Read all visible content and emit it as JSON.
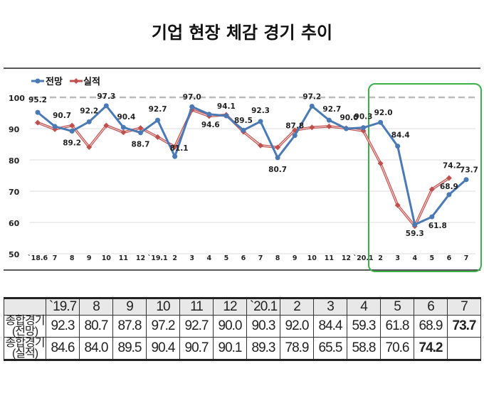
{
  "title": "기업 현장 체감 경기 추이",
  "chart_data": {
    "type": "line",
    "title": "기업 현장 체감 경기 추이",
    "categories": [
      "`18.6",
      "7",
      "8",
      "9",
      "10",
      "11",
      "12",
      "`19.1",
      "2",
      "3",
      "4",
      "5",
      "6",
      "7",
      "8",
      "9",
      "10",
      "11",
      "12",
      "`20.1",
      "2",
      "3",
      "4",
      "5",
      "6",
      "7"
    ],
    "ylim": [
      50,
      100
    ],
    "yticks": [
      50,
      60,
      70,
      80,
      90,
      100
    ],
    "grid": true,
    "reference_line": 100,
    "legend": "top-left",
    "series": [
      {
        "name": "전망",
        "color": "#4a7ab5",
        "values": [
          95.2,
          90.7,
          89.2,
          92.2,
          97.3,
          90.4,
          88.7,
          92.7,
          81.1,
          97.0,
          94.6,
          94.1,
          89.5,
          92.3,
          80.7,
          87.8,
          97.2,
          92.7,
          90.0,
          90.3,
          92.0,
          84.4,
          59.3,
          61.8,
          68.9,
          73.7
        ],
        "labeled": true
      },
      {
        "name": "실적",
        "color": "#c0504d",
        "values": [
          91.9,
          89.8,
          91.0,
          84.1,
          91.0,
          88.8,
          90.2,
          87.3,
          84.2,
          96.0,
          94.0,
          94.4,
          89.0,
          84.6,
          84.0,
          89.5,
          90.4,
          90.7,
          90.1,
          89.3,
          78.9,
          65.5,
          58.8,
          70.6,
          74.2,
          null
        ],
        "labeled_last": "74.2"
      }
    ],
    "highlight_box_color": "#3cb04a"
  },
  "table": {
    "header": [
      "`19.7",
      "8",
      "9",
      "10",
      "11",
      "12",
      "`20.1",
      "2",
      "3",
      "4",
      "5",
      "6",
      "7"
    ],
    "rows": [
      {
        "label1": "종합경기",
        "label2": "(전망)",
        "values": [
          "92.3",
          "80.7",
          "87.8",
          "97.2",
          "92.7",
          "90.0",
          "90.3",
          "92.0",
          "84.4",
          "59.3",
          "61.8",
          "68.9",
          "73.7"
        ]
      },
      {
        "label1": "종합경기",
        "label2": "(실적)",
        "values": [
          "84.6",
          "84.0",
          "89.5",
          "90.4",
          "90.7",
          "90.1",
          "89.3",
          "78.9",
          "65.5",
          "58.8",
          "70.6",
          "74.2",
          ""
        ]
      }
    ]
  }
}
